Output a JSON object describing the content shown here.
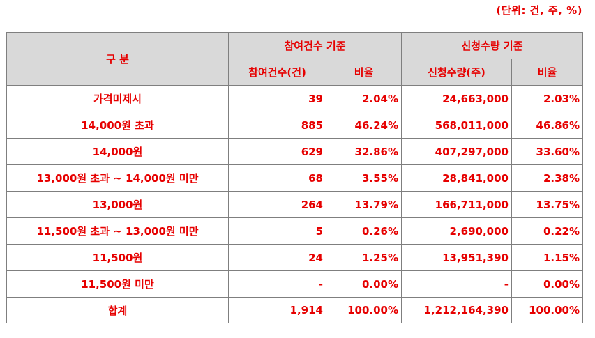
{
  "unit_note": "(단위: 건, 주, %)",
  "header": {
    "category": "구 분",
    "group1": "참여건수 기준",
    "group2": "신청수량 기준",
    "sub1": "참여건수(건)",
    "sub2": "비율",
    "sub3": "신청수량(주)",
    "sub4": "비율"
  },
  "rows": [
    {
      "label": "가격미제시",
      "count": "39",
      "count_ratio": "2.04%",
      "qty": "24,663,000",
      "qty_ratio": "2.03%"
    },
    {
      "label": "14,000원 초과",
      "count": "885",
      "count_ratio": "46.24%",
      "qty": "568,011,000",
      "qty_ratio": "46.86%"
    },
    {
      "label": "14,000원",
      "count": "629",
      "count_ratio": "32.86%",
      "qty": "407,297,000",
      "qty_ratio": "33.60%"
    },
    {
      "label": "13,000원 초과 ~ 14,000원 미만",
      "count": "68",
      "count_ratio": "3.55%",
      "qty": "28,841,000",
      "qty_ratio": "2.38%"
    },
    {
      "label": "13,000원",
      "count": "264",
      "count_ratio": "13.79%",
      "qty": "166,711,000",
      "qty_ratio": "13.75%"
    },
    {
      "label": "11,500원 초과 ~ 13,000원 미만",
      "count": "5",
      "count_ratio": "0.26%",
      "qty": "2,690,000",
      "qty_ratio": "0.22%"
    },
    {
      "label": "11,500원",
      "count": "24",
      "count_ratio": "1.25%",
      "qty": "13,951,390",
      "qty_ratio": "1.15%"
    },
    {
      "label": "11,500원 미만",
      "count": "-",
      "count_ratio": "0.00%",
      "qty": "-",
      "qty_ratio": "0.00%"
    },
    {
      "label": "합계",
      "count": "1,914",
      "count_ratio": "100.00%",
      "qty": "1,212,164,390",
      "qty_ratio": "100.00%"
    }
  ],
  "colors": {
    "text": "#e60000",
    "header_bg": "#d9d9d9",
    "border": "#7f7f7f"
  }
}
